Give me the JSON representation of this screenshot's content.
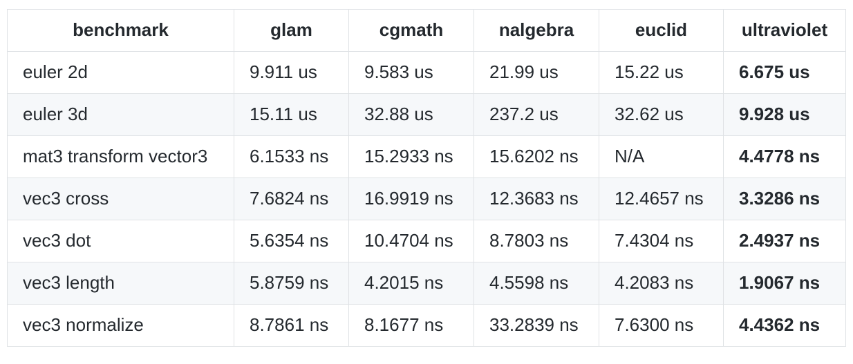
{
  "table": {
    "headers": [
      "benchmark",
      "glam",
      "cgmath",
      "nalgebra",
      "euclid",
      "ultraviolet"
    ],
    "rows": [
      [
        "euler 2d",
        "9.911 us",
        "9.583 us",
        "21.99 us",
        "15.22 us",
        "6.675 us"
      ],
      [
        "euler 3d",
        "15.11 us",
        "32.88 us",
        "237.2 us",
        "32.62 us",
        "9.928 us"
      ],
      [
        "mat3 transform vector3",
        "6.1533 ns",
        "15.2933 ns",
        "15.6202 ns",
        "N/A",
        "4.4778 ns"
      ],
      [
        "vec3 cross",
        "7.6824 ns",
        "16.9919 ns",
        "12.3683 ns",
        "12.4657 ns",
        "3.3286 ns"
      ],
      [
        "vec3 dot",
        "5.6354 ns",
        "10.4704 ns",
        "8.7803 ns",
        "7.4304 ns",
        "2.4937 ns"
      ],
      [
        "vec3 length",
        "5.8759 ns",
        "4.2015 ns",
        "4.5598 ns",
        "4.2083 ns",
        "1.9067 ns"
      ],
      [
        "vec3 normalize",
        "8.7861 ns",
        "8.1677 ns",
        "33.2839 ns",
        "7.6300 ns",
        "4.4362 ns"
      ]
    ]
  }
}
